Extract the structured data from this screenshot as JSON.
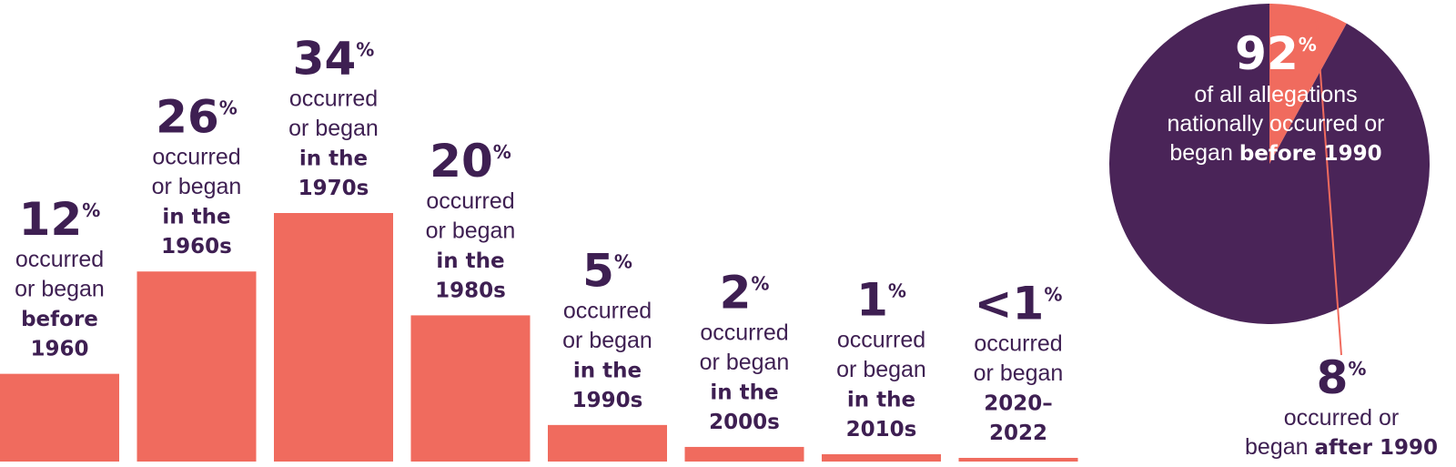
{
  "chart_data": [
    {
      "type": "bar",
      "categories": [
        "before 1960",
        "in the 1960s",
        "in the 1970s",
        "in the 1980s",
        "in the 1990s",
        "in the 2000s",
        "in the 2010s",
        "2020–2022"
      ],
      "values": [
        12,
        26,
        34,
        20,
        5,
        2,
        1,
        0.5
      ],
      "value_labels": [
        "12",
        "26",
        "34",
        "20",
        "5",
        "2",
        "1",
        "<1"
      ],
      "percent_sign": "%",
      "desc_lines": [
        "occurred",
        "or began"
      ],
      "bold_lines": [
        [
          "before",
          "1960"
        ],
        [
          "in the",
          "1960s"
        ],
        [
          "in the",
          "1970s"
        ],
        [
          "in the",
          "1980s"
        ],
        [
          "in the",
          "1990s"
        ],
        [
          "in the",
          "2000s"
        ],
        [
          "in the",
          "2010s"
        ],
        [
          "2020–",
          "2022"
        ]
      ],
      "ylim": [
        0,
        34
      ],
      "grid": false,
      "colors": {
        "bar": "#f06b5e",
        "text": "#3e1f52"
      }
    },
    {
      "type": "pie",
      "slices": [
        {
          "label": "before 1990",
          "value": 92,
          "color": "#4a2458"
        },
        {
          "label": "after 1990",
          "value": 8,
          "color": "#f06b5e"
        }
      ],
      "main_value": "92",
      "main_lines": [
        "of all allegations",
        "nationally occurred or"
      ],
      "main_last_prefix": "began ",
      "main_last_bold": "before 1990",
      "minor_value": "8",
      "minor_line1": "occurred or",
      "minor_last_prefix": "began ",
      "minor_last_bold": "after 1990",
      "percent_sign": "%",
      "colors": {
        "inner_text": "#ffffff",
        "outer_text": "#3e1f52",
        "leader": "#f06b5e"
      }
    }
  ]
}
